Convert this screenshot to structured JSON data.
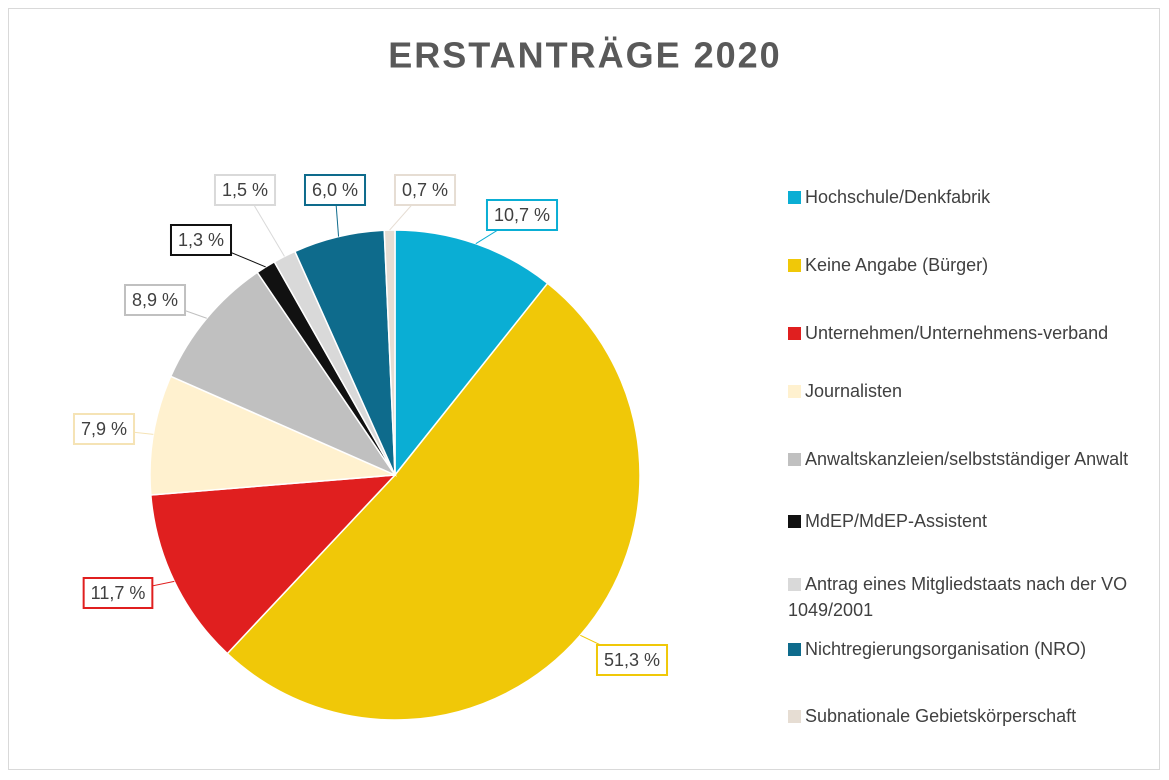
{
  "chart_data": {
    "type": "pie",
    "title": "ERSTANTRÄGE 2020",
    "categories": [
      "Hochschule/Denkfabrik",
      "Keine Angabe (Bürger)",
      "Unternehmen/Unternehmens-verband",
      "Journalisten",
      "Anwaltskanzleien/selbstständiger Anwalt",
      "MdEP/MdEP-Assistent",
      "Antrag eines Mitgliedstaats nach der VO 1049/2001",
      "Nichtregierungsorganisation (NRO)",
      "Subnationale Gebietskörperschaft"
    ],
    "values": [
      10.7,
      51.3,
      11.7,
      7.9,
      8.9,
      1.3,
      1.5,
      6.0,
      0.7
    ],
    "value_labels": [
      "10,7 %",
      "51,3 %",
      "11,7 %",
      "7,9 %",
      "8,9 %",
      "1,3 %",
      "1,5 %",
      "6,0 %",
      "0,7 %"
    ],
    "colors": [
      "#0aaed4",
      "#f0c808",
      "#e01f1f",
      "#fff1cf",
      "#c0c0c0",
      "#111111",
      "#d9d9d9",
      "#0e6b8c",
      "#e6ddd3"
    ],
    "legend": "right"
  }
}
